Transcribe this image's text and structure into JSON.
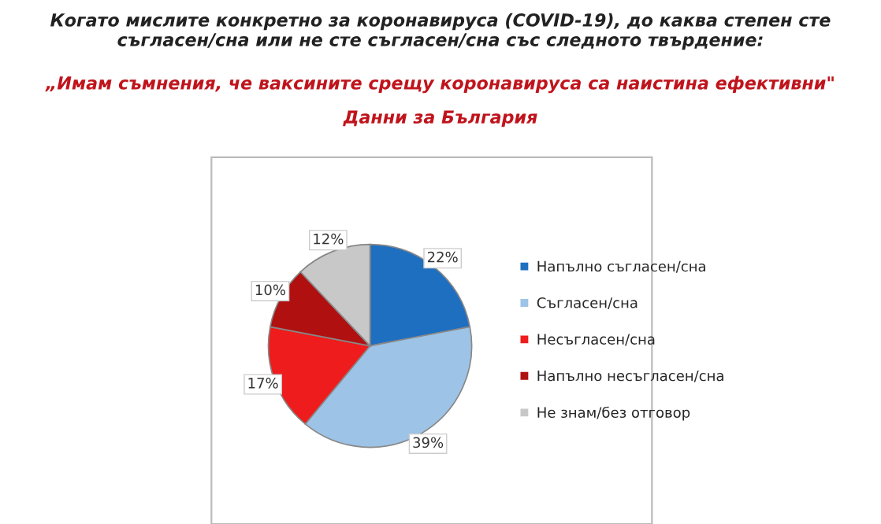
{
  "chart_data": {
    "type": "pie",
    "title": "Когато мислите конкретно за коронавируса (COVID-19), до каква степен сте съгласен/сна или не сте съгласен/сна със следното твърдение:",
    "subtitle": "„Имам съмнения, че ваксините срещу коронавируса са наистина ефективни\"",
    "annotations": [
      "Данни за България"
    ],
    "categories": [
      "Напълно съгласен/сна",
      "Съгласен/сна",
      "Несъгласен/сна",
      "Напълно несъгласен/сна",
      "Не знам/без отговор"
    ],
    "values": [
      22,
      39,
      17,
      10,
      12
    ],
    "value_labels": [
      "22%",
      "39%",
      "17%",
      "10%",
      "12%"
    ],
    "colors": [
      "#1f6fc0",
      "#9dc3e6",
      "#ee1c1c",
      "#b01010",
      "#c8c8c8"
    ],
    "legend": "right"
  }
}
